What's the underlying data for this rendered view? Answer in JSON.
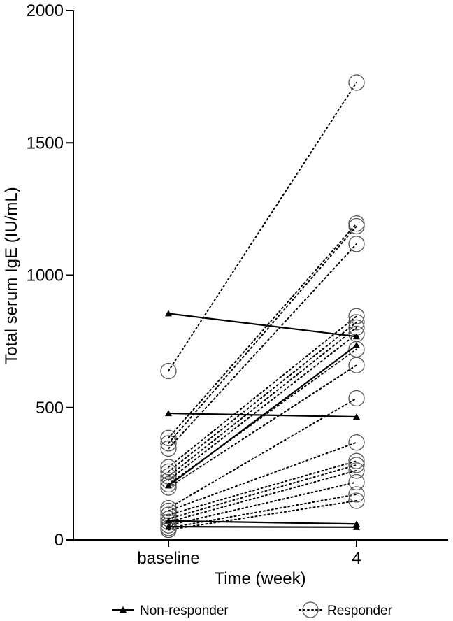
{
  "chart_data": {
    "type": "line",
    "ylabel": "Total serum IgE (IU/mL)",
    "xlabel": "Time (week)",
    "categories": [
      "baseline",
      "4"
    ],
    "ylim": [
      0,
      2000
    ],
    "yticks": [
      0,
      500,
      1000,
      1500,
      2000
    ],
    "grid": false,
    "legend_position": "bottom",
    "legend": [
      {
        "label": "Non-responder",
        "style": "solid-triangle"
      },
      {
        "label": "Responder",
        "style": "dotted-circle"
      }
    ],
    "series": [
      {
        "group": "Non-responder",
        "values": [
          855,
          768
        ]
      },
      {
        "group": "Non-responder",
        "values": [
          478,
          465
        ]
      },
      {
        "group": "Non-responder",
        "values": [
          205,
          735
        ]
      },
      {
        "group": "Non-responder",
        "values": [
          72,
          60
        ]
      },
      {
        "group": "Non-responder",
        "values": [
          50,
          48
        ]
      },
      {
        "group": "Responder",
        "values": [
          638,
          1728
        ]
      },
      {
        "group": "Responder",
        "values": [
          385,
          1195
        ]
      },
      {
        "group": "Responder",
        "values": [
          365,
          1185
        ]
      },
      {
        "group": "Responder",
        "values": [
          345,
          1118
        ]
      },
      {
        "group": "Responder",
        "values": [
          275,
          845
        ]
      },
      {
        "group": "Responder",
        "values": [
          258,
          822
        ]
      },
      {
        "group": "Responder",
        "values": [
          240,
          802
        ]
      },
      {
        "group": "Responder",
        "values": [
          225,
          778
        ]
      },
      {
        "group": "Responder",
        "values": [
          210,
          720
        ]
      },
      {
        "group": "Responder",
        "values": [
          198,
          660
        ]
      },
      {
        "group": "Responder",
        "values": [
          120,
          535
        ]
      },
      {
        "group": "Responder",
        "values": [
          110,
          368
        ]
      },
      {
        "group": "Responder",
        "values": [
          95,
          298
        ]
      },
      {
        "group": "Responder",
        "values": [
          80,
          283
        ]
      },
      {
        "group": "Responder",
        "values": [
          68,
          262
        ]
      },
      {
        "group": "Responder",
        "values": [
          55,
          218
        ]
      },
      {
        "group": "Responder",
        "values": [
          45,
          172
        ]
      },
      {
        "group": "Responder",
        "values": [
          38,
          148
        ]
      }
    ]
  }
}
